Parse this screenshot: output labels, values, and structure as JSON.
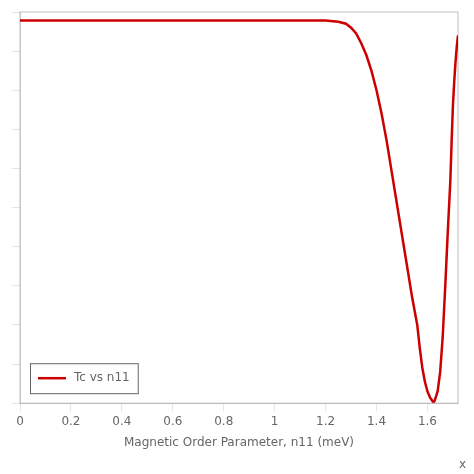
{
  "chart_data": {
    "type": "line",
    "x_label": "Magnetic Order Parameter, n11 (meV)",
    "annotations": [
      "x"
    ],
    "xlim": [
      0,
      1.72
    ],
    "ylim": [
      0,
      1.0
    ],
    "xticks": [
      0,
      0.2,
      0.4,
      0.6,
      0.8,
      1,
      1.2,
      1.4,
      1.6
    ],
    "yticks": [
      0.0,
      0.1,
      0.2,
      0.3,
      0.4,
      0.5,
      0.6,
      0.7,
      0.8,
      0.9,
      1.0
    ],
    "tick_labels": "x",
    "grid": false,
    "legend": "lower left",
    "series": [
      {
        "name": "Tc vs n11",
        "color": "#cc0000",
        "x": [
          0.0,
          0.05,
          0.1,
          0.2,
          0.3,
          0.4,
          0.5,
          0.6,
          0.7,
          0.8,
          0.9,
          1.0,
          1.05,
          1.1,
          1.15,
          1.2,
          1.25,
          1.28,
          1.3,
          1.32,
          1.34,
          1.36,
          1.38,
          1.4,
          1.42,
          1.44,
          1.46,
          1.48,
          1.5,
          1.52,
          1.54,
          1.56,
          1.57,
          1.58,
          1.59,
          1.6,
          1.61,
          1.62,
          1.625
        ],
        "values": [
          0.978,
          0.978,
          0.978,
          0.978,
          0.978,
          0.978,
          0.978,
          0.978,
          0.978,
          0.978,
          0.978,
          0.978,
          0.978,
          0.978,
          0.978,
          0.978,
          0.975,
          0.97,
          0.96,
          0.945,
          0.92,
          0.89,
          0.85,
          0.8,
          0.74,
          0.67,
          0.59,
          0.51,
          0.43,
          0.35,
          0.27,
          0.2,
          0.14,
          0.09,
          0.055,
          0.03,
          0.015,
          0.005,
          0.002
        ]
      },
      {
        "color": "#cc0000",
        "x": [
          1.625,
          1.63,
          1.64,
          1.65,
          1.66,
          1.67,
          1.68,
          1.69,
          1.695,
          1.7,
          1.705,
          1.71,
          1.715,
          1.72
        ],
        "values": [
          0.002,
          0.01,
          0.03,
          0.08,
          0.17,
          0.3,
          0.44,
          0.57,
          0.67,
          0.76,
          0.82,
          0.87,
          0.91,
          0.94
        ]
      }
    ]
  }
}
